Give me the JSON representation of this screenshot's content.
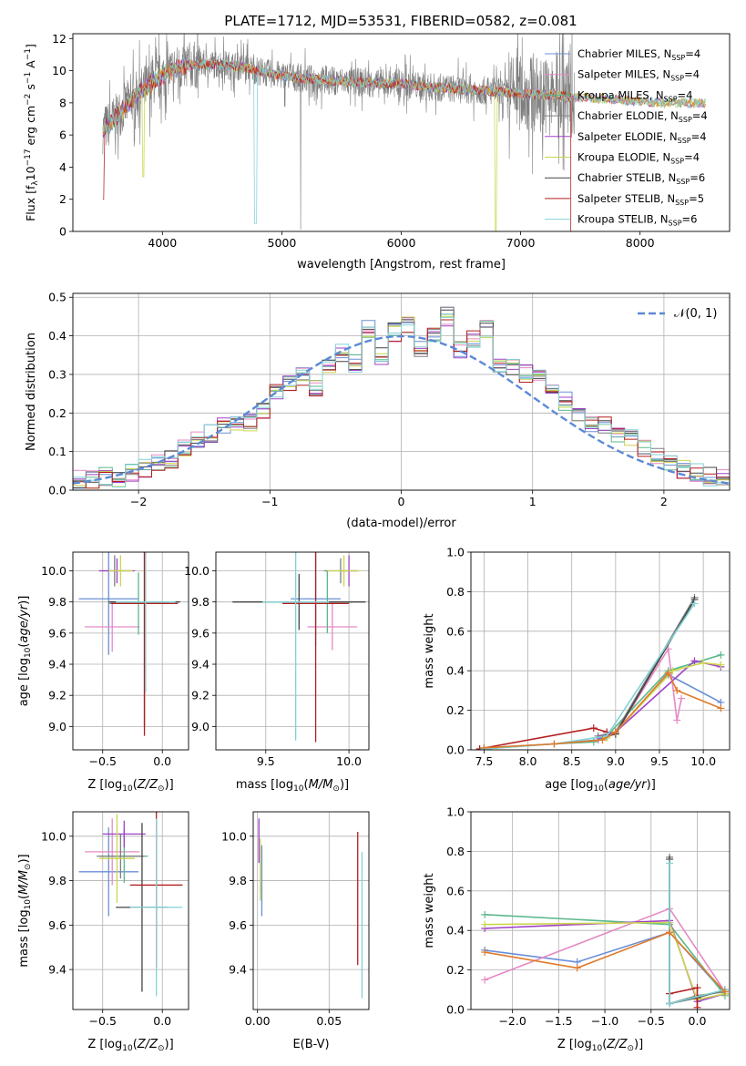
{
  "figure": {
    "title": "PLATE=1712, MJD=53531, FIBERID=0582, z=0.081",
    "colors": [
      "#6a8fd8",
      "#e58ac4",
      "#5ab88c",
      "#7f7f7f",
      "#a040c8",
      "#cbd64d",
      "#444444",
      "#b41e1e",
      "#82d2d4"
    ]
  },
  "chart_data": [
    {
      "id": "spectrum",
      "type": "line",
      "title": "PLATE=1712, MJD=53531, FIBERID=0582, z=0.081",
      "xlabel": "wavelength [Angstrom, rest frame]",
      "ylabel": "Flux [f_λ 10^-17 erg cm^-2 s^-1 A^-1]",
      "xlim": [
        3250,
        8750
      ],
      "ylim": [
        0,
        12.3
      ],
      "xticks": [
        4000,
        5000,
        6000,
        7000,
        8000
      ],
      "yticks": [
        0,
        2,
        4,
        6,
        8,
        10,
        12
      ],
      "grid": false,
      "legend_position": "top-right",
      "series": [
        {
          "name": "Chabrier MILES, N_SSP=4"
        },
        {
          "name": "Salpeter MILES, N_SSP=4"
        },
        {
          "name": "Kroupa MILES, N_SSP=4"
        },
        {
          "name": "Chabrier ELODIE, N_SSP=4"
        },
        {
          "name": "Salpeter ELODIE, N_SSP=4"
        },
        {
          "name": "Kroupa ELODIE, N_SSP=4"
        },
        {
          "name": "Chabrier STELIB, N_SSP=6"
        },
        {
          "name": "Salpeter STELIB, N_SSP=5"
        },
        {
          "name": "Kroupa STELIB, N_SSP=6"
        }
      ],
      "model_curve": {
        "x": [
          3500,
          3600,
          3700,
          3800,
          3900,
          4000,
          4100,
          4200,
          4300,
          4400,
          4500,
          4600,
          4700,
          4800,
          4900,
          5000,
          5200,
          5400,
          5600,
          5800,
          6000,
          6200,
          6400,
          6600,
          6800,
          7000,
          7200,
          7300,
          7400,
          7600,
          7800,
          8000,
          8200,
          8400
        ],
        "y": [
          6.3,
          7.0,
          7.9,
          8.6,
          9.2,
          9.7,
          10.1,
          10.3,
          10.4,
          10.4,
          10.4,
          10.3,
          10.2,
          10.0,
          9.8,
          9.7,
          9.5,
          9.4,
          9.3,
          9.2,
          9.2,
          9.0,
          8.9,
          8.8,
          8.7,
          8.6,
          8.5,
          8.5,
          8.4,
          8.3,
          8.2,
          8.1,
          8.0,
          8.0
        ]
      }
    },
    {
      "id": "residuals",
      "type": "line",
      "xlabel": "(data-model)/error",
      "ylabel": "Normed distribution",
      "xlim": [
        -2.5,
        2.5
      ],
      "ylim": [
        0,
        0.51
      ],
      "xticks": [
        -2,
        -1,
        0,
        1,
        2
      ],
      "yticks": [
        0.0,
        0.1,
        0.2,
        0.3,
        0.4,
        0.5
      ],
      "grid": true,
      "legend_position": "top-right",
      "reference_curve": {
        "name": "𝒩(0, 1)",
        "mean": 0,
        "sigma": 1
      },
      "bin_edges": [
        -2.5,
        -2.4,
        -2.3,
        -2.2,
        -2.1,
        -2.0,
        -1.9,
        -1.8,
        -1.7,
        -1.6,
        -1.5,
        -1.4,
        -1.3,
        -1.2,
        -1.1,
        -1.0,
        -0.9,
        -0.8,
        -0.7,
        -0.6,
        -0.5,
        -0.4,
        -0.3,
        -0.2,
        -0.1,
        0.0,
        0.1,
        0.2,
        0.3,
        0.4,
        0.5,
        0.6,
        0.7,
        0.8,
        0.9,
        1.0,
        1.1,
        1.2,
        1.3,
        1.4,
        1.5,
        1.6,
        1.7,
        1.8,
        1.9,
        2.0,
        2.1,
        2.2,
        2.3,
        2.4,
        2.5
      ],
      "hist_base": [
        0.03,
        0.025,
        0.035,
        0.03,
        0.045,
        0.055,
        0.075,
        0.08,
        0.105,
        0.13,
        0.145,
        0.165,
        0.18,
        0.175,
        0.21,
        0.25,
        0.275,
        0.295,
        0.26,
        0.33,
        0.355,
        0.33,
        0.42,
        0.35,
        0.41,
        0.43,
        0.37,
        0.4,
        0.45,
        0.36,
        0.39,
        0.42,
        0.33,
        0.32,
        0.3,
        0.29,
        0.26,
        0.23,
        0.2,
        0.175,
        0.165,
        0.145,
        0.135,
        0.105,
        0.085,
        0.065,
        0.055,
        0.045,
        0.035,
        0.03
      ]
    },
    {
      "id": "z-age",
      "type": "scatter",
      "xlabel": "Z [log10(Z/Z⊙)]",
      "ylabel": "age  [log10(age/yr)]",
      "xlim": [
        -0.75,
        0.22
      ],
      "ylim": [
        8.85,
        10.12
      ],
      "xticks": [
        -0.5,
        0.0
      ],
      "yticks": [
        9.0,
        9.2,
        9.4,
        9.6,
        9.8,
        10.0
      ],
      "grid": true,
      "points": [
        {
          "series": 0,
          "x": -0.45,
          "y": 9.82,
          "xerr": 0.25,
          "yerr": 0.36
        },
        {
          "series": 1,
          "x": -0.42,
          "y": 9.64,
          "xerr": 0.23,
          "yerr": 0.16
        },
        {
          "series": 2,
          "x": -0.2,
          "y": 9.79,
          "xerr": 0.25,
          "yerr": 0.2
        },
        {
          "series": 3,
          "x": -0.4,
          "y": 10.0,
          "xerr": 0.13,
          "yerr": 0.1
        },
        {
          "series": 4,
          "x": -0.38,
          "y": 10.0,
          "xerr": 0.15,
          "yerr": 0.08
        },
        {
          "series": 5,
          "x": -0.35,
          "y": 10.0,
          "xerr": 0.1,
          "yerr": 0.1
        },
        {
          "series": 6,
          "x": -0.15,
          "y": 9.8,
          "xerr": 0.3,
          "yerr": 0.8
        },
        {
          "series": 7,
          "x": -0.15,
          "y": 9.79,
          "xerr": 0.28,
          "yerr": 0.85
        },
        {
          "series": 8,
          "x": -0.14,
          "y": 9.8,
          "xerr": 0.25,
          "yerr": 0.58
        }
      ]
    },
    {
      "id": "mass-age",
      "type": "scatter",
      "xlabel": "mass [log10(M/M⊙)]",
      "ylabel": "",
      "xlim": [
        9.2,
        10.12
      ],
      "ylim": [
        8.85,
        10.12
      ],
      "xticks": [
        9.5,
        10.0
      ],
      "yticks": [
        9.0,
        9.2,
        9.4,
        9.6,
        9.8,
        10.0
      ],
      "grid": true,
      "points": [
        {
          "series": 0,
          "x": 9.8,
          "y": 9.82,
          "xerr": 0.15,
          "yerr": 0.3
        },
        {
          "series": 1,
          "x": 9.9,
          "y": 9.64,
          "xerr": 0.15,
          "yerr": 0.15
        },
        {
          "series": 2,
          "x": 9.87,
          "y": 9.8,
          "xerr": 0.15,
          "yerr": 0.2
        },
        {
          "series": 3,
          "x": 9.95,
          "y": 10.0,
          "xerr": 0.1,
          "yerr": 0.08
        },
        {
          "series": 4,
          "x": 10.0,
          "y": 10.0,
          "xerr": 0.05,
          "yerr": 0.1
        },
        {
          "series": 5,
          "x": 9.97,
          "y": 10.0,
          "xerr": 0.1,
          "yerr": 0.1
        },
        {
          "series": 6,
          "x": 9.7,
          "y": 9.8,
          "xerr": 0.4,
          "yerr": 0.18
        },
        {
          "series": 7,
          "x": 9.8,
          "y": 9.79,
          "xerr": 0.2,
          "yerr": 0.89
        },
        {
          "series": 8,
          "x": 9.68,
          "y": 9.8,
          "xerr": 0.2,
          "yerr": 0.89
        }
      ]
    },
    {
      "id": "weights-age",
      "type": "line",
      "xlabel": "age  [log10(age/yr)]",
      "ylabel": "mass weight",
      "xlim": [
        7.35,
        10.3
      ],
      "ylim": [
        0,
        1.0
      ],
      "xticks": [
        7.5,
        8.0,
        8.5,
        9.0,
        9.5,
        10.0
      ],
      "yticks": [
        0.0,
        0.2,
        0.4,
        0.6,
        0.8,
        1.0
      ],
      "grid": true,
      "series": [
        {
          "series": 0,
          "x": [
            7.5,
            8.3,
            8.8,
            9.0,
            9.6,
            10.2
          ],
          "y": [
            0.01,
            0.03,
            0.05,
            0.09,
            0.38,
            0.24
          ]
        },
        {
          "series": 1,
          "x": [
            8.8,
            9.0,
            9.6,
            9.7,
            9.75
          ],
          "y": [
            0.05,
            0.08,
            0.51,
            0.15,
            0.26
          ]
        },
        {
          "series": 2,
          "x": [
            7.5,
            8.3,
            8.75,
            8.9,
            9.6,
            10.2
          ],
          "y": [
            0.005,
            0.03,
            0.04,
            0.07,
            0.4,
            0.48
          ]
        },
        {
          "series": 3,
          "x": [
            8.8,
            9.0,
            9.9
          ],
          "y": [
            0.07,
            0.09,
            0.77
          ]
        },
        {
          "series": 4,
          "x": [
            8.8,
            9.0,
            9.9,
            10.2
          ],
          "y": [
            0.06,
            0.09,
            0.45,
            0.42
          ]
        },
        {
          "series": 5,
          "x": [
            8.9,
            9.0,
            9.65,
            10.0,
            10.2
          ],
          "y": [
            0.06,
            0.09,
            0.4,
            0.44,
            0.43
          ]
        },
        {
          "series": 6,
          "x": [
            8.9,
            9.0,
            9.9
          ],
          "y": [
            0.07,
            0.08,
            0.76
          ]
        },
        {
          "series": 7,
          "x": [
            7.45,
            8.75,
            8.9
          ],
          "y": [
            0.005,
            0.11,
            0.09
          ]
        },
        {
          "series": 8,
          "x": [
            7.5,
            8.3,
            8.9,
            9.9
          ],
          "y": [
            0.005,
            0.03,
            0.07,
            0.74
          ]
        },
        {
          "series": 9,
          "x": [
            7.5,
            8.3,
            8.85,
            9.0,
            9.6,
            9.7,
            10.2
          ],
          "y": [
            0.01,
            0.03,
            0.05,
            0.09,
            0.39,
            0.3,
            0.21
          ]
        }
      ]
    },
    {
      "id": "z-mass",
      "type": "scatter",
      "xlabel": "Z [log10(Z/Z⊙)]",
      "ylabel": "mass [log10(M/M⊙)]",
      "xlim": [
        -0.75,
        0.22
      ],
      "ylim": [
        9.22,
        10.11
      ],
      "xticks": [
        -0.5,
        0.0
      ],
      "yticks": [
        9.4,
        9.6,
        9.8,
        10.0
      ],
      "grid": true,
      "points": [
        {
          "series": 0,
          "x": -0.45,
          "y": 9.84,
          "xerr": 0.25,
          "yerr": 0.2
        },
        {
          "series": 1,
          "x": -0.42,
          "y": 9.93,
          "xerr": 0.23,
          "yerr": 0.15
        },
        {
          "series": 2,
          "x": -0.32,
          "y": 9.91,
          "xerr": 0.2,
          "yerr": 0.12
        },
        {
          "series": 3,
          "x": -0.35,
          "y": 9.91,
          "xerr": 0.2,
          "yerr": 0.1
        },
        {
          "series": 4,
          "x": -0.32,
          "y": 10.01,
          "xerr": 0.18,
          "yerr": 0.06
        },
        {
          "series": 5,
          "x": -0.38,
          "y": 9.9,
          "xerr": 0.15,
          "yerr": 0.2
        },
        {
          "series": 6,
          "x": -0.17,
          "y": 9.68,
          "xerr": 0.22,
          "yerr": 0.38
        },
        {
          "series": 7,
          "x": -0.05,
          "y": 9.78,
          "xerr": 0.22,
          "yerr": 0.37
        },
        {
          "series": 8,
          "x": -0.05,
          "y": 9.68,
          "xerr": 0.22,
          "yerr": 0.4
        }
      ]
    },
    {
      "id": "ebv-mass",
      "type": "scatter",
      "xlabel": "E(B-V)",
      "ylabel": "",
      "xlim": [
        -0.003,
        0.0778
      ],
      "ylim": [
        9.22,
        10.11
      ],
      "xticks": [
        0.0,
        0.05
      ],
      "yticks": [
        9.4,
        9.6,
        9.8,
        10.0
      ],
      "grid": true,
      "points": [
        {
          "series": 0,
          "x": 0.003,
          "y": 9.8,
          "xerr": 0,
          "yerr": 0.16
        },
        {
          "series": 1,
          "x": 0.002,
          "y": 9.84,
          "xerr": 0,
          "yerr": 0.1
        },
        {
          "series": 4,
          "x": 0.001,
          "y": 9.98,
          "xerr": 0,
          "yerr": 0.1
        },
        {
          "series": 5,
          "x": 0.002,
          "y": 9.85,
          "xerr": 0,
          "yerr": 0.14
        },
        {
          "series": 7,
          "x": 0.07,
          "y": 9.72,
          "xerr": 0,
          "yerr": 0.3
        },
        {
          "series": 8,
          "x": 0.073,
          "y": 9.6,
          "xerr": 0,
          "yerr": 0.33
        }
      ]
    },
    {
      "id": "weights-z",
      "type": "line",
      "xlabel": "Z [log10(Z/Z⊙)]",
      "ylabel": "mass weight",
      "xlim": [
        -2.45,
        0.35
      ],
      "ylim": [
        0,
        1.0
      ],
      "xticks": [
        -2.0,
        -1.5,
        -1.0,
        -0.5,
        0.0
      ],
      "yticks": [
        0.0,
        0.2,
        0.4,
        0.6,
        0.8,
        1.0
      ],
      "grid": true,
      "series": [
        {
          "series": 0,
          "x": [
            -2.3,
            -1.3,
            -0.3,
            0.3
          ],
          "y": [
            0.3,
            0.24,
            0.39,
            0.08
          ]
        },
        {
          "series": 1,
          "x": [
            -2.3,
            -0.3,
            0.3
          ],
          "y": [
            0.15,
            0.51,
            0.09
          ]
        },
        {
          "series": 2,
          "x": [
            -2.3,
            -0.3,
            0.3
          ],
          "y": [
            0.48,
            0.43,
            0.07
          ]
        },
        {
          "series": 3,
          "x": [
            -0.3,
            -0.3,
            0.0,
            0.3
          ],
          "y": [
            0.77,
            0.03,
            0.07,
            0.09
          ]
        },
        {
          "series": 4,
          "x": [
            -2.3,
            -0.3,
            0.0,
            0.3
          ],
          "y": [
            0.41,
            0.45,
            0.04,
            0.08
          ]
        },
        {
          "series": 5,
          "x": [
            -2.3,
            -0.3,
            0.0,
            0.3
          ],
          "y": [
            0.43,
            0.44,
            0.05,
            0.08
          ]
        },
        {
          "series": 6,
          "x": [
            -0.3,
            -0.3,
            0.0,
            0.3
          ],
          "y": [
            0.76,
            0.03,
            0.06,
            0.1
          ]
        },
        {
          "series": 7,
          "x": [
            -0.3,
            0.0,
            0.0
          ],
          "y": [
            0.08,
            0.11,
            0.01
          ]
        },
        {
          "series": 8,
          "x": [
            -0.3,
            -0.3,
            0.3
          ],
          "y": [
            0.74,
            0.03,
            0.1
          ]
        },
        {
          "series": 9,
          "x": [
            -2.3,
            -1.3,
            -0.3,
            0.3
          ],
          "y": [
            0.29,
            0.21,
            0.39,
            0.09
          ]
        }
      ]
    }
  ]
}
